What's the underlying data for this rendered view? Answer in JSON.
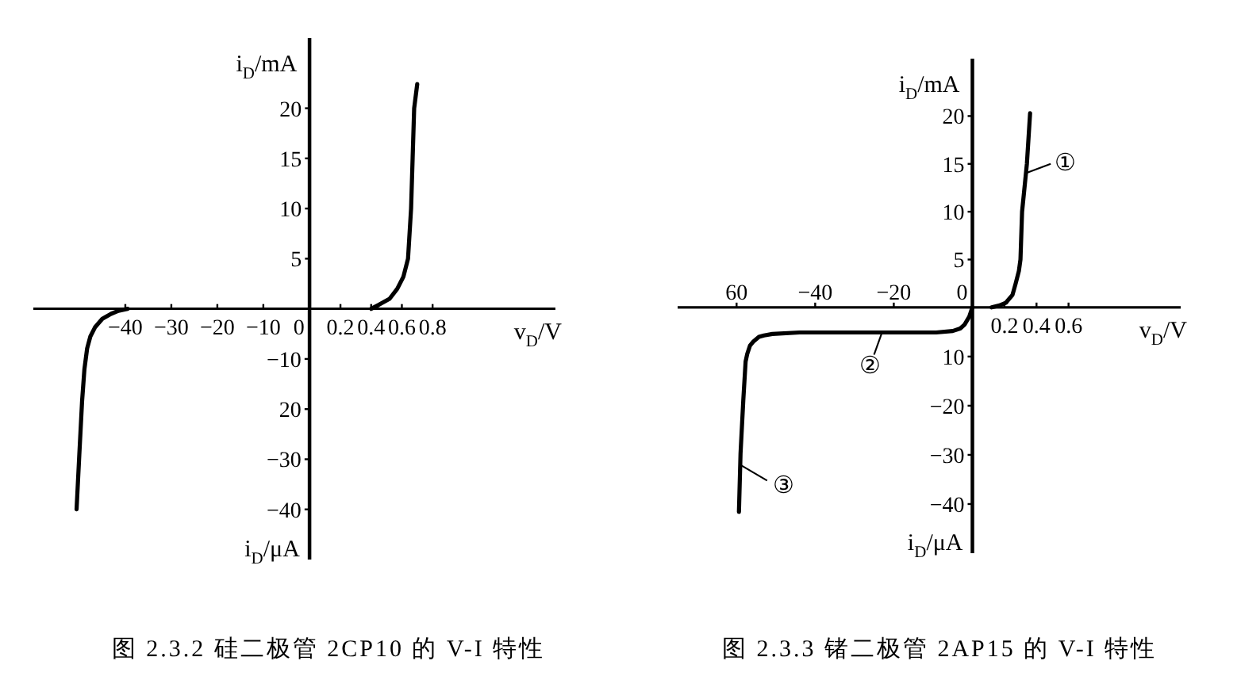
{
  "chart_data": [
    {
      "type": "line",
      "xlabel": "v$_{D}$/V",
      "ylabel": "i$_{D}$/mA",
      "xlim": [
        -1.8,
        1.6
      ],
      "ylim": [
        -25,
        27
      ],
      "xticks": [
        0.2,
        0.4,
        0.6,
        0.8
      ],
      "yticks": [
        5,
        10,
        15,
        20
      ],
      "series": [
        {
          "color": "#000000",
          "x": [
            0.4,
            0.45,
            0.52,
            0.57,
            0.61,
            0.64,
            0.66,
            0.67,
            0.68,
            0.7
          ],
          "values": [
            0,
            0.4,
            1,
            2,
            3.2,
            5,
            10,
            15,
            20,
            22.4
          ]
        }
      ]
    },
    {
      "type": "line",
      "title": "图 2.3.2 硅二极管 2CP10 的 V-I 特性",
      "ylabel": "i$_{D}$/μA",
      "xlim": [
        -60,
        53.5
      ],
      "ylim": [
        -50,
        54
      ],
      "xticks": [
        {
          "value": -40,
          "label": "−40"
        },
        {
          "value": -30,
          "label": "−30"
        },
        {
          "value": -20,
          "label": "−20"
        },
        {
          "value": -10,
          "label": "−10"
        },
        0
      ],
      "yticks": [
        {
          "value": -40,
          "label": "−40"
        },
        {
          "value": -30,
          "label": "−30"
        },
        {
          "value": -20,
          "label": "20"
        },
        {
          "value": -10,
          "label": "−10"
        }
      ],
      "series": [
        {
          "color": "#000000",
          "x": [
            -39.5,
            -41.5,
            -43.1,
            -45,
            -46.6,
            -47.6,
            -48.3,
            -48.9,
            -49.4,
            -50,
            -50.6
          ],
          "values": [
            0,
            -0.4,
            -1,
            -2,
            -3.7,
            -5.5,
            -7.9,
            -12.1,
            -18.4,
            -29,
            -40
          ]
        }
      ]
    },
    {
      "type": "line",
      "xlabel": "v$_{D}$/V",
      "ylabel": "i$_{D}$/mA",
      "xlim": [
        -1.84,
        1.3
      ],
      "ylim": [
        -25.7,
        26
      ],
      "xticks": [
        0.2,
        0.4,
        0.6
      ],
      "yticks": [
        5,
        10,
        15,
        20
      ],
      "annotations": [
        {
          "text": "①",
          "x": 0.33,
          "y": 14
        }
      ],
      "series": [
        {
          "color": "#000000",
          "x": [
            0.12,
            0.17,
            0.21,
            0.25,
            0.27,
            0.29,
            0.3,
            0.31,
            0.34,
            0.36
          ],
          "values": [
            0,
            0.2,
            0.5,
            1.3,
            2.5,
            3.8,
            5,
            10,
            15,
            20.3
          ]
        }
      ]
    },
    {
      "type": "line",
      "title": "图 2.3.3 锗二极管 2AP15 的 V-I 特性",
      "ylabel": "i$_{D}$/μA",
      "xlim": [
        -75,
        53
      ],
      "ylim": [
        -50,
        50.6
      ],
      "xticks": [
        {
          "value": -60,
          "label": "60"
        },
        {
          "value": -40,
          "label": "−40"
        },
        {
          "value": -20,
          "label": "−20"
        },
        0
      ],
      "yticks": [
        {
          "value": -40,
          "label": "−40"
        },
        {
          "value": -30,
          "label": "−30"
        },
        {
          "value": -20,
          "label": "−20"
        },
        {
          "value": -10,
          "label": "10"
        }
      ],
      "annotations": [
        {
          "text": "②",
          "x": -23,
          "y": -5.1
        },
        {
          "text": "③",
          "x": -59.1,
          "y": -32
        }
      ],
      "series": [
        {
          "color": "#000000",
          "x": [
            0,
            -0.8,
            -2,
            -3.1,
            -5,
            -9.2,
            -24,
            -44,
            -50.9,
            -53,
            -54.3,
            -55.8,
            -56.6,
            -57.3,
            -57.7,
            -58.3,
            -59,
            -59.4
          ],
          "values": [
            0,
            -1.9,
            -3.5,
            -4.3,
            -4.8,
            -5.1,
            -5.1,
            -5.1,
            -5.4,
            -5.7,
            -6,
            -7,
            -7.8,
            -9.5,
            -11,
            -19,
            -29.8,
            -41.6
          ]
        }
      ]
    }
  ]
}
